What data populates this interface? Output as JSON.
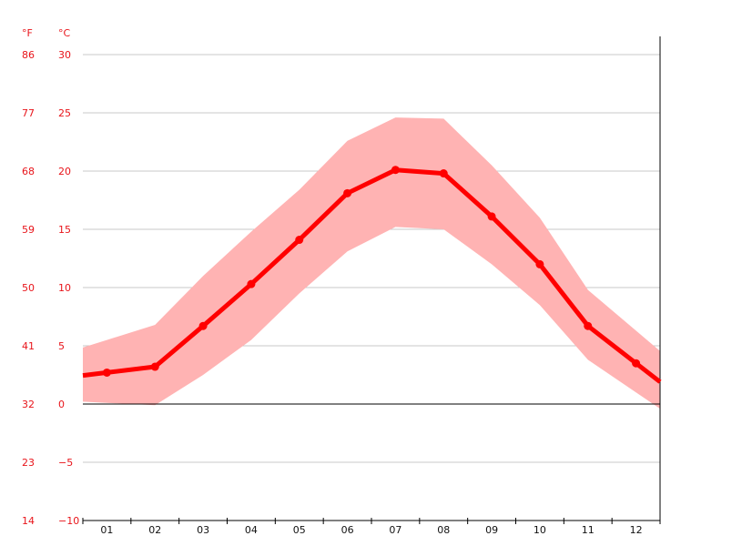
{
  "chart_data": {
    "type": "line",
    "units": {
      "fahrenheit": "°F",
      "celsius": "°C"
    },
    "categories": [
      "01",
      "02",
      "03",
      "04",
      "05",
      "06",
      "07",
      "08",
      "09",
      "10",
      "11",
      "12"
    ],
    "y_ticks_celsius": [
      "30",
      "25",
      "20",
      "15",
      "10",
      "5",
      "0",
      "−5",
      "−10"
    ],
    "y_ticks_fahrenheit": [
      "86",
      "77",
      "68",
      "59",
      "50",
      "41",
      "32",
      "23",
      "14"
    ],
    "ylim": [
      -10,
      30
    ],
    "grid": true,
    "series": [
      {
        "type": "line",
        "values": [
          2.7,
          3.2,
          6.7,
          10.3,
          14.1,
          18.1,
          20.1,
          19.8,
          16.1,
          12.0,
          6.7,
          3.5
        ],
        "color": "#ff0000"
      },
      {
        "type": "band",
        "upper": [
          5.5,
          6.8,
          11.0,
          14.8,
          18.4,
          22.6,
          24.6,
          24.5,
          20.5,
          16.0,
          9.8,
          6.3
        ],
        "lower": [
          0.1,
          -0.1,
          2.5,
          5.5,
          9.5,
          13.1,
          15.2,
          15.0,
          12.0,
          8.5,
          3.8,
          1.0
        ],
        "color": "#ffb3b3"
      }
    ]
  }
}
